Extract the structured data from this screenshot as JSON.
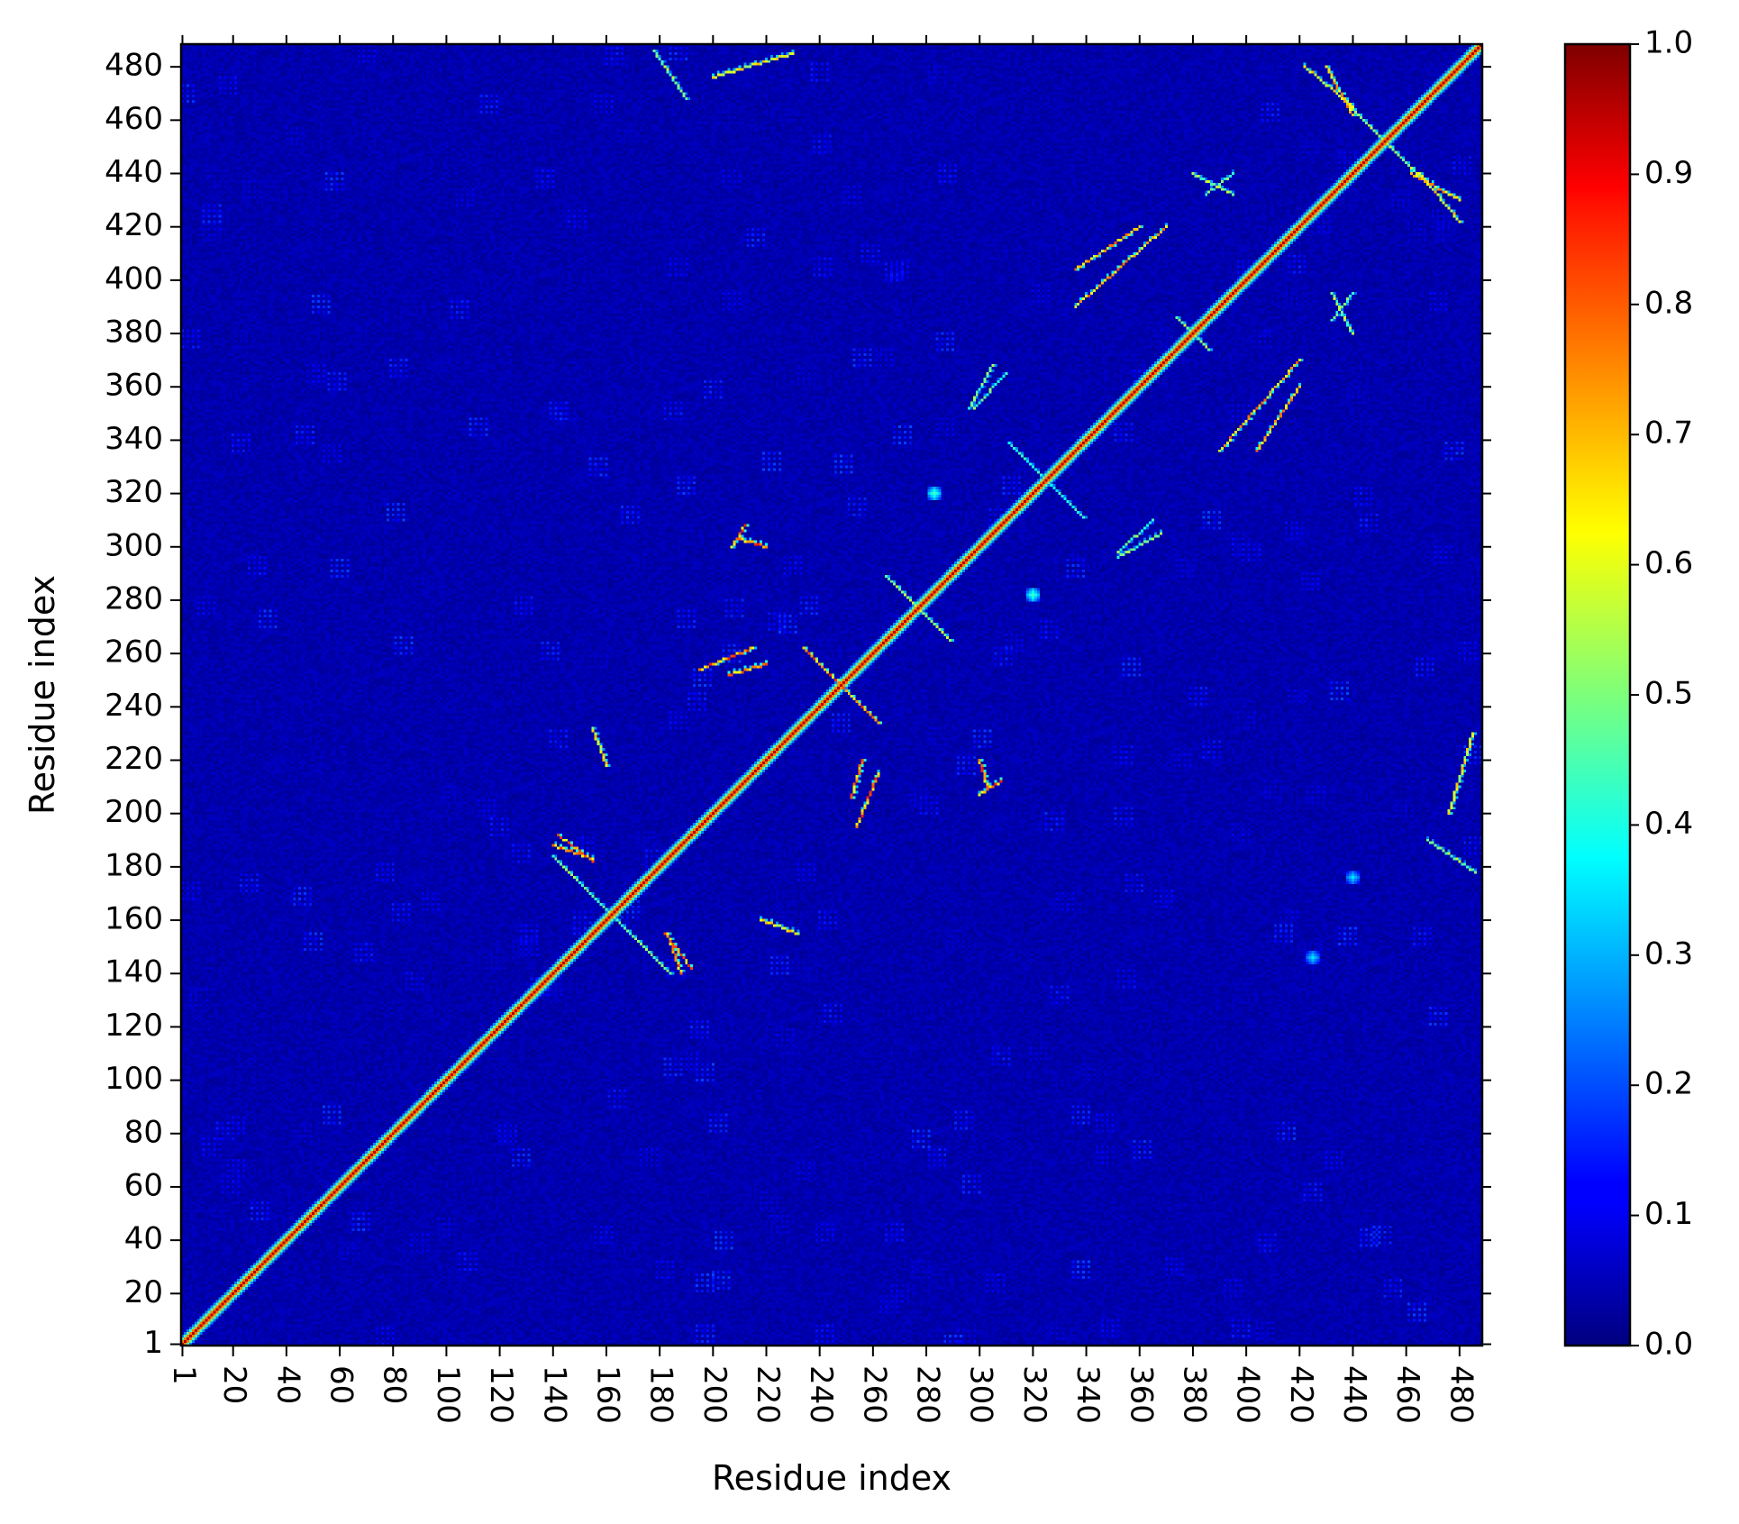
{
  "chart_data": {
    "type": "heatmap",
    "title": "",
    "xlabel": "Residue index",
    "ylabel": "Residue index",
    "n_residues": 488,
    "x_ticks": [
      1,
      20,
      40,
      60,
      80,
      100,
      120,
      140,
      160,
      180,
      200,
      220,
      240,
      260,
      280,
      300,
      320,
      340,
      360,
      380,
      400,
      420,
      440,
      460,
      480
    ],
    "y_ticks": [
      1,
      20,
      40,
      60,
      80,
      100,
      120,
      140,
      160,
      180,
      200,
      220,
      240,
      260,
      280,
      300,
      320,
      340,
      360,
      380,
      400,
      420,
      440,
      460,
      480
    ],
    "colorbar": {
      "colormap": "jet",
      "range": [
        0.0,
        1.0
      ],
      "ticks": [
        "0.0",
        "0.1",
        "0.2",
        "0.3",
        "0.4",
        "0.5",
        "0.6",
        "0.7",
        "0.8",
        "0.9",
        "1.0"
      ]
    },
    "diagonal_value": 0.95,
    "background_value": 0.02,
    "contact_features": [
      {
        "type": "antiparallel",
        "center": [
          162,
          162
        ],
        "half_length": 22,
        "value": 0.55
      },
      {
        "type": "antiparallel",
        "center": [
          248,
          248
        ],
        "half_length": 14,
        "value": 0.85
      },
      {
        "type": "antiparallel",
        "center": [
          277,
          277
        ],
        "half_length": 12,
        "value": 0.6
      },
      {
        "type": "antiparallel",
        "center": [
          325,
          325
        ],
        "half_length": 14,
        "value": 0.45
      },
      {
        "type": "antiparallel",
        "center": [
          380,
          380
        ],
        "half_length": 6,
        "value": 0.6
      },
      {
        "type": "antiparallel",
        "center": [
          452,
          452
        ],
        "half_length": 14,
        "value": 0.6
      },
      {
        "type": "parallel",
        "from": [
          360,
          420
        ],
        "to": [
          336,
          404
        ],
        "value": 0.8
      },
      {
        "type": "parallel",
        "from": [
          420,
          370
        ],
        "to": [
          390,
          336
        ],
        "value": 0.8
      },
      {
        "type": "parallel",
        "from": [
          480,
          422
        ],
        "to": [
          465,
          440
        ],
        "value": 0.7
      },
      {
        "type": "parallel",
        "from": [
          440,
          462
        ],
        "to": [
          430,
          480
        ],
        "value": 0.8
      },
      {
        "type": "parallel",
        "from": [
          215,
          262
        ],
        "to": [
          195,
          254
        ],
        "value": 0.85
      },
      {
        "type": "parallel",
        "from": [
          256,
          220
        ],
        "to": [
          252,
          206
        ],
        "value": 0.85
      },
      {
        "type": "parallel",
        "from": [
          183,
          155
        ],
        "to": [
          188,
          140
        ],
        "value": 0.85
      },
      {
        "type": "parallel",
        "from": [
          142,
          192
        ],
        "to": [
          155,
          182
        ],
        "value": 0.85
      },
      {
        "type": "parallel",
        "from": [
          155,
          232
        ],
        "to": [
          160,
          218
        ],
        "value": 0.7
      },
      {
        "type": "parallel",
        "from": [
          303,
          210
        ],
        "to": [
          300,
          220
        ],
        "value": 0.85
      },
      {
        "type": "parallel",
        "from": [
          207,
          300
        ],
        "to": [
          212,
          308
        ],
        "value": 0.85
      },
      {
        "type": "arc",
        "from": [
          305,
          368
        ],
        "to": [
          296,
          352
        ],
        "value": 0.55
      },
      {
        "type": "arc",
        "from": [
          352,
          298
        ],
        "to": [
          365,
          310
        ],
        "value": 0.55
      },
      {
        "type": "arc",
        "from": [
          380,
          440
        ],
        "to": [
          395,
          432
        ],
        "value": 0.6
      },
      {
        "type": "arc",
        "from": [
          440,
          395
        ],
        "to": [
          432,
          385
        ],
        "value": 0.55
      },
      {
        "type": "arc",
        "from": [
          178,
          486
        ],
        "to": [
          190,
          468
        ],
        "value": 0.6
      },
      {
        "type": "arc",
        "from": [
          485,
          230
        ],
        "to": [
          476,
          200
        ],
        "value": 0.7
      },
      {
        "type": "spot",
        "center": [
          320,
          282
        ],
        "value": 0.45
      },
      {
        "type": "spot",
        "center": [
          283,
          320
        ],
        "value": 0.45
      },
      {
        "type": "spot",
        "center": [
          425,
          146
        ],
        "value": 0.35
      },
      {
        "type": "spot",
        "center": [
          440,
          176
        ],
        "value": 0.35
      }
    ]
  }
}
